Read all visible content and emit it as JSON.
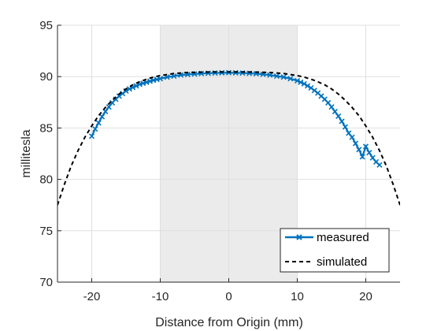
{
  "chart_data": {
    "type": "line",
    "title": "",
    "xlabel": "Distance from Origin (mm)",
    "ylabel": "millitesla",
    "xlim": [
      -25,
      25
    ],
    "ylim": [
      70,
      95
    ],
    "xticks": [
      -20,
      -10,
      0,
      10,
      20
    ],
    "yticks": [
      70,
      75,
      80,
      85,
      90,
      95
    ],
    "grid": true,
    "legend": "bottom-right",
    "shaded_region": {
      "x": [
        -10,
        10
      ],
      "color": "#ebebeb"
    },
    "series": [
      {
        "name": "measured",
        "color": "#0072bd",
        "marker": "x",
        "x": [
          -20,
          -19.5,
          -19,
          -18.5,
          -18,
          -17.5,
          -17,
          -16.5,
          -16,
          -15.5,
          -15,
          -14.5,
          -14,
          -13.5,
          -13,
          -12.5,
          -12,
          -11.5,
          -11,
          -10.5,
          -10,
          -9,
          -8,
          -7,
          -6,
          -5,
          -4,
          -3,
          -2,
          -1,
          0,
          1,
          2,
          3,
          4,
          5,
          6,
          7,
          8,
          9,
          10,
          10.5,
          11,
          11.5,
          12,
          12.5,
          13,
          13.5,
          14,
          14.5,
          15,
          15.5,
          16,
          16.5,
          17,
          17.5,
          18,
          18.5,
          19,
          19.5,
          20,
          20.5,
          21,
          21.5,
          22
        ],
        "y": [
          84.2,
          84.9,
          85.5,
          86.1,
          86.6,
          87.05,
          87.45,
          87.8,
          88.1,
          88.35,
          88.6,
          88.8,
          88.95,
          89.1,
          89.25,
          89.35,
          89.45,
          89.55,
          89.65,
          89.72,
          89.8,
          89.95,
          90.05,
          90.15,
          90.2,
          90.25,
          90.3,
          90.33,
          90.35,
          90.37,
          90.38,
          90.37,
          90.35,
          90.32,
          90.28,
          90.22,
          90.15,
          90.05,
          89.95,
          89.8,
          89.6,
          89.45,
          89.3,
          89.1,
          88.9,
          88.65,
          88.4,
          88.1,
          87.8,
          87.45,
          87.05,
          86.6,
          86.15,
          85.65,
          85.1,
          84.5,
          84.1,
          83.5,
          82.9,
          82.2,
          83.2,
          82.6,
          82.1,
          81.7,
          81.4
        ]
      },
      {
        "name": "simulated",
        "color": "#000000",
        "dash": "dashed",
        "x": [
          -25,
          -24,
          -23,
          -22,
          -21,
          -20,
          -19,
          -18,
          -17,
          -16,
          -15,
          -14,
          -13,
          -12,
          -11,
          -10,
          -9,
          -8,
          -7,
          -6,
          -5,
          -4,
          -3,
          -2,
          -1,
          0,
          1,
          2,
          3,
          4,
          5,
          6,
          7,
          8,
          9,
          10,
          11,
          12,
          13,
          14,
          15,
          16,
          17,
          18,
          19,
          20,
          21,
          22,
          23,
          24,
          25
        ],
        "y": [
          77.5,
          79.5,
          81.3,
          82.8,
          84.1,
          85.2,
          86.2,
          87.0,
          87.7,
          88.3,
          88.8,
          89.2,
          89.5,
          89.75,
          89.95,
          90.1,
          90.2,
          90.3,
          90.35,
          90.4,
          90.42,
          90.44,
          90.45,
          90.46,
          90.46,
          90.46,
          90.46,
          90.46,
          90.45,
          90.44,
          90.42,
          90.4,
          90.35,
          90.3,
          90.2,
          90.1,
          89.95,
          89.75,
          89.5,
          89.2,
          88.8,
          88.3,
          87.7,
          87.0,
          86.2,
          85.2,
          84.1,
          82.8,
          81.3,
          79.5,
          77.5
        ]
      }
    ]
  }
}
